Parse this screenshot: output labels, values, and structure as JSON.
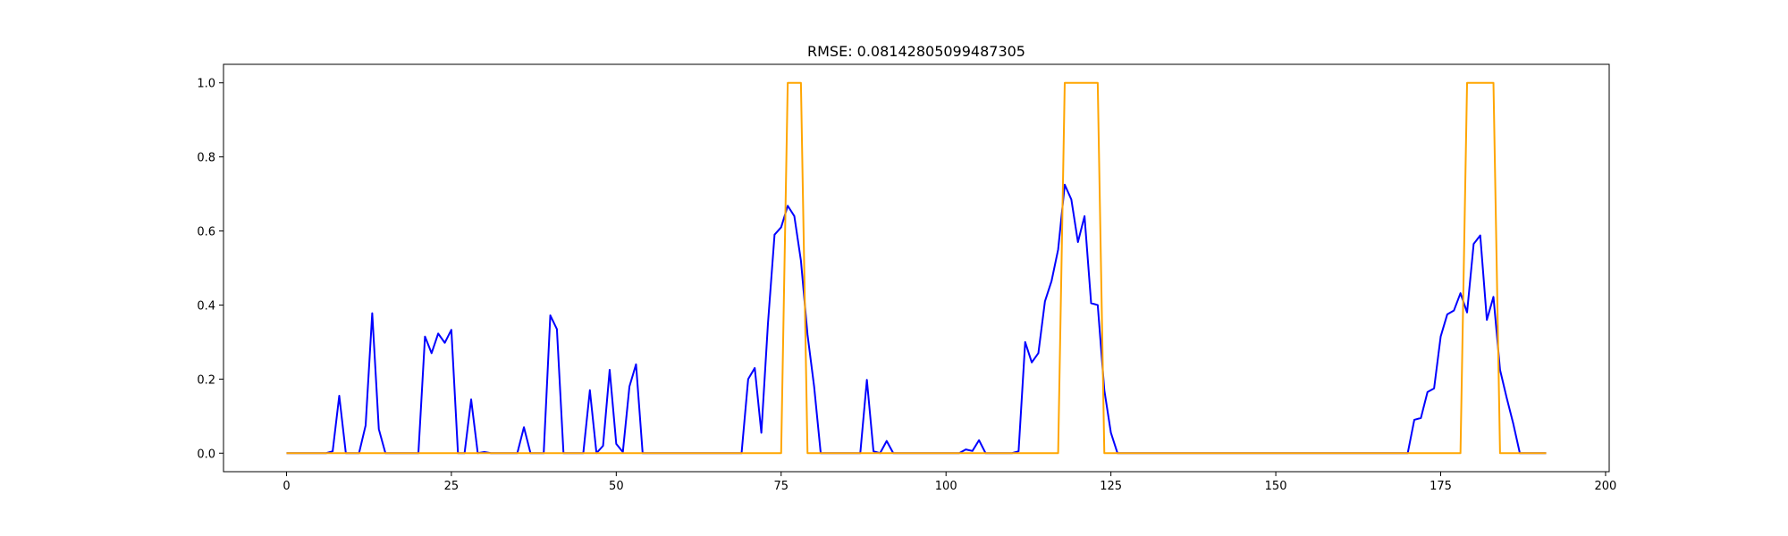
{
  "chart_data": {
    "type": "line",
    "title": "RMSE: 0.08142805099487305",
    "xlabel": "",
    "ylabel": "",
    "xlim": [
      -9.55,
      200.55
    ],
    "ylim": [
      -0.05,
      1.05
    ],
    "xticks": [
      0,
      25,
      50,
      75,
      100,
      125,
      150,
      175,
      200
    ],
    "yticks": [
      0.0,
      0.2,
      0.4,
      0.6,
      0.8,
      1.0
    ],
    "xtick_labels": [
      "0",
      "25",
      "50",
      "75",
      "100",
      "125",
      "150",
      "175",
      "200"
    ],
    "ytick_labels": [
      "0.0",
      "0.2",
      "0.4",
      "0.6",
      "0.8",
      "1.0"
    ],
    "grid": false,
    "legend": "none",
    "series": [
      {
        "color": "#0000ff",
        "x": [
          0,
          1,
          2,
          3,
          4,
          5,
          6,
          7,
          8,
          9,
          10,
          11,
          12,
          13,
          14,
          15,
          16,
          17,
          18,
          19,
          20,
          21,
          22,
          23,
          24,
          25,
          26,
          27,
          28,
          29,
          30,
          31,
          32,
          33,
          34,
          35,
          36,
          37,
          38,
          39,
          40,
          41,
          42,
          43,
          44,
          45,
          46,
          47,
          48,
          49,
          50,
          51,
          52,
          53,
          54,
          55,
          56,
          57,
          58,
          59,
          60,
          61,
          62,
          63,
          64,
          65,
          66,
          67,
          68,
          69,
          70,
          71,
          72,
          73,
          74,
          75,
          76,
          77,
          78,
          79,
          80,
          81,
          82,
          83,
          84,
          85,
          86,
          87,
          88,
          89,
          90,
          91,
          92,
          93,
          94,
          95,
          96,
          97,
          98,
          99,
          100,
          101,
          102,
          103,
          104,
          105,
          106,
          107,
          108,
          109,
          110,
          111,
          112,
          113,
          114,
          115,
          116,
          117,
          118,
          119,
          120,
          121,
          122,
          123,
          124,
          125,
          126,
          127,
          128,
          129,
          130,
          131,
          132,
          133,
          134,
          135,
          136,
          137,
          138,
          139,
          140,
          141,
          142,
          143,
          144,
          145,
          146,
          147,
          148,
          149,
          150,
          151,
          152,
          153,
          154,
          155,
          156,
          157,
          158,
          159,
          160,
          161,
          162,
          163,
          164,
          165,
          166,
          167,
          168,
          169,
          170,
          171,
          172,
          173,
          174,
          175,
          176,
          177,
          178,
          179,
          180,
          181,
          182,
          183,
          184,
          185,
          186,
          187,
          188,
          189,
          190,
          191
        ],
        "y": [
          0,
          0,
          0,
          0,
          0,
          0,
          0,
          0.005,
          0.155,
          0,
          0,
          0,
          0.075,
          0.378,
          0.065,
          0,
          0,
          0,
          0,
          0,
          0,
          0.315,
          0.27,
          0.323,
          0.298,
          0.333,
          0,
          0,
          0.145,
          0,
          0.003,
          0,
          0,
          0,
          0,
          0,
          0.07,
          0,
          0,
          0,
          0.372,
          0.335,
          0,
          0,
          0,
          0,
          0.17,
          0,
          0.02,
          0.225,
          0.025,
          0.003,
          0.18,
          0.24,
          0,
          0,
          0,
          0,
          0,
          0,
          0,
          0,
          0,
          0,
          0,
          0,
          0,
          0,
          0,
          0,
          0.2,
          0.23,
          0.055,
          0.35,
          0.59,
          0.61,
          0.668,
          0.64,
          0.52,
          0.32,
          0.18,
          0,
          0,
          0,
          0,
          0,
          0,
          0,
          0.198,
          0.005,
          0,
          0.033,
          0,
          0,
          0,
          0,
          0,
          0,
          0,
          0,
          0,
          0,
          0,
          0.01,
          0.006,
          0.035,
          0,
          0,
          0,
          0,
          0,
          0.005,
          0.3,
          0.245,
          0.27,
          0.41,
          0.465,
          0.55,
          0.725,
          0.685,
          0.57,
          0.64,
          0.405,
          0.4,
          0.17,
          0.055,
          0,
          0,
          0,
          0,
          0,
          0,
          0,
          0,
          0,
          0,
          0,
          0,
          0,
          0,
          0,
          0,
          0,
          0,
          0,
          0,
          0,
          0,
          0,
          0,
          0,
          0,
          0,
          0,
          0,
          0,
          0,
          0,
          0,
          0,
          0,
          0,
          0,
          0,
          0,
          0,
          0,
          0,
          0,
          0,
          0,
          0.09,
          0.095,
          0.165,
          0.175,
          0.315,
          0.375,
          0.385,
          0.432,
          0.38,
          0.565,
          0.588,
          0.36,
          0.422,
          0.225,
          0.15,
          0.08,
          0,
          0,
          0,
          0,
          0
        ]
      },
      {
        "color": "#ffa500",
        "x": [
          0,
          75,
          76,
          78,
          79,
          117,
          118,
          123,
          124,
          178,
          179,
          183,
          184,
          191
        ],
        "y": [
          0,
          0,
          1,
          1,
          0,
          0,
          1,
          1,
          0,
          0,
          1,
          1,
          0,
          0
        ]
      }
    ]
  }
}
